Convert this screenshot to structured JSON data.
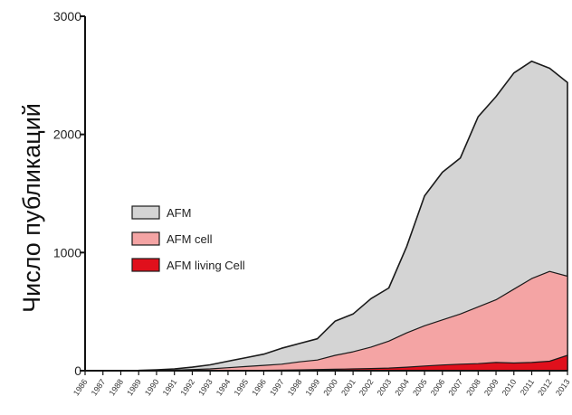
{
  "chart_data": {
    "type": "area",
    "title": "",
    "xlabel": "",
    "ylabel": "Число публикаций",
    "ylim": [
      0,
      3000
    ],
    "yticks": [
      0,
      1000,
      2000,
      3000
    ],
    "grid": false,
    "legend_position": "left",
    "x": [
      1986,
      1987,
      1988,
      1989,
      1990,
      1991,
      1992,
      1993,
      1994,
      1995,
      1996,
      1997,
      1998,
      1999,
      2000,
      2001,
      2002,
      2003,
      2004,
      2005,
      2006,
      2007,
      2008,
      2009,
      2010,
      2011,
      2012,
      2013
    ],
    "series": [
      {
        "name": "AFM",
        "color": "#d4d4d4",
        "values": [
          0,
          0,
          1,
          2,
          8,
          15,
          30,
          50,
          80,
          110,
          140,
          190,
          230,
          270,
          420,
          480,
          610,
          700,
          1050,
          1480,
          1680,
          1800,
          2150,
          2320,
          2520,
          2620,
          2560,
          2440
        ]
      },
      {
        "name": "AFM cell",
        "color": "#f4a4a4",
        "values": [
          0,
          0,
          0,
          0,
          2,
          5,
          10,
          15,
          25,
          35,
          45,
          55,
          75,
          90,
          130,
          160,
          200,
          250,
          320,
          380,
          430,
          480,
          540,
          600,
          690,
          780,
          840,
          800
        ]
      },
      {
        "name": "AFM living Cell",
        "color": "#e0101c",
        "values": [
          0,
          0,
          0,
          0,
          0,
          0,
          0,
          0,
          1,
          2,
          3,
          5,
          7,
          10,
          12,
          15,
          18,
          22,
          30,
          40,
          48,
          55,
          60,
          70,
          65,
          70,
          80,
          130
        ]
      }
    ],
    "xtick_labels": [
      "1986",
      "1987",
      "1988",
      "1989",
      "1990",
      "1991",
      "1992",
      "1993",
      "1994",
      "1995",
      "1996",
      "1997",
      "1998",
      "1999",
      "2000",
      "2001",
      "2002",
      "2003",
      "2004",
      "2005",
      "2006",
      "2007",
      "2008",
      "2009",
      "2010",
      "2011",
      "2012",
      "2013"
    ]
  }
}
